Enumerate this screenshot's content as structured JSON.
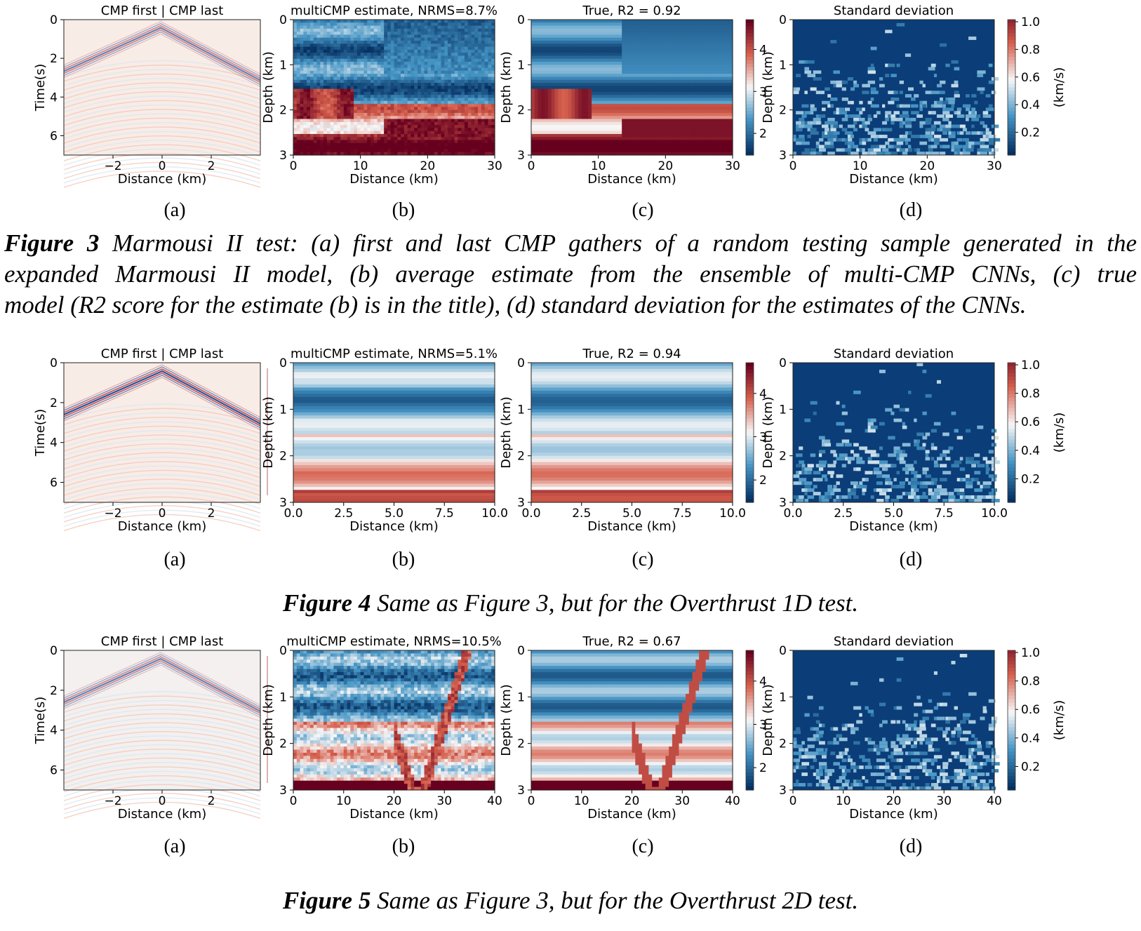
{
  "figures": [
    {
      "id": "fig3",
      "panels": {
        "a": {
          "title": "CMP first | CMP last",
          "xlabel": "Distance (km)",
          "ylabel": "Time(s)",
          "xticks": [
            "−2",
            "0",
            "2"
          ],
          "yticks": [
            "0",
            "2",
            "4",
            "6"
          ]
        },
        "b": {
          "title": "multiCMP estimate, NRMS=8.7%",
          "xlabel": "Distance (km)",
          "ylabel": "Depth (km)",
          "xticks": [
            "0",
            "10",
            "20",
            "30"
          ],
          "yticks": [
            "0",
            "1",
            "2",
            "3"
          ]
        },
        "c": {
          "title": "True, R2 = 0.92",
          "xlabel": "Distance (km)",
          "ylabel": "Depth (km)",
          "xticks": [
            "0",
            "10",
            "20",
            "30"
          ],
          "yticks": [
            "0",
            "1",
            "2",
            "3"
          ],
          "cbar_ticks": [
            "4",
            "3",
            "2"
          ]
        },
        "d": {
          "title": "Standard deviation",
          "xlabel": "Distance (km)",
          "ylabel": "Depth (km)",
          "xticks": [
            "0",
            "10",
            "20",
            "30"
          ],
          "yticks": [
            "0",
            "1",
            "2",
            "3"
          ],
          "cbar_ticks": [
            "1.0",
            "0.8",
            "0.6",
            "0.4",
            "0.2"
          ],
          "cbar_label": "(km/s)"
        }
      },
      "labels": [
        "(a)",
        "(b)",
        "(c)",
        "(d)"
      ]
    },
    {
      "id": "fig4",
      "panels": {
        "a": {
          "title": "CMP first | CMP last",
          "xlabel": "Distance (km)",
          "ylabel": "Time(s)",
          "xticks": [
            "−2",
            "0",
            "2"
          ],
          "yticks": [
            "0",
            "2",
            "4",
            "6"
          ]
        },
        "b": {
          "title": "multiCMP estimate, NRMS=5.1%",
          "xlabel": "Distance (km)",
          "ylabel": "Depth (km)",
          "xticks": [
            "0.0",
            "2.5",
            "5.0",
            "7.5",
            "10.0"
          ],
          "yticks": [
            "0",
            "1",
            "2",
            "3"
          ]
        },
        "c": {
          "title": "True, R2 = 0.94",
          "xlabel": "Distance (km)",
          "ylabel": "Depth (km)",
          "xticks": [
            "0.0",
            "2.5",
            "5.0",
            "7.5",
            "10.0"
          ],
          "yticks": [
            "0",
            "1",
            "2",
            "3"
          ],
          "cbar_ticks": [
            "4",
            "3",
            "2"
          ]
        },
        "d": {
          "title": "Standard deviation",
          "xlabel": "Distance (km)",
          "ylabel": "Depth (km)",
          "xticks": [
            "0.0",
            "2.5",
            "5.0",
            "7.5",
            "10.0"
          ],
          "yticks": [
            "0",
            "1",
            "2",
            "3"
          ],
          "cbar_ticks": [
            "1.0",
            "0.8",
            "0.6",
            "0.4",
            "0.2"
          ],
          "cbar_label": "(km/s)"
        }
      },
      "labels": [
        "(a)",
        "(b)",
        "(c)",
        "(d)"
      ]
    },
    {
      "id": "fig5",
      "panels": {
        "a": {
          "title": "CMP first | CMP last",
          "xlabel": "Distance (km)",
          "ylabel": "Time(s)",
          "xticks": [
            "−2",
            "0",
            "2"
          ],
          "yticks": [
            "0",
            "2",
            "4",
            "6"
          ]
        },
        "b": {
          "title": "multiCMP estimate, NRMS=10.5%",
          "xlabel": "Distance (km)",
          "ylabel": "Depth (km)",
          "xticks": [
            "0",
            "10",
            "20",
            "30",
            "40"
          ],
          "yticks": [
            "0",
            "1",
            "2",
            "3"
          ]
        },
        "c": {
          "title": "True, R2 = 0.67",
          "xlabel": "Distance (km)",
          "ylabel": "Depth (km)",
          "xticks": [
            "0",
            "10",
            "20",
            "30",
            "40"
          ],
          "yticks": [
            "0",
            "1",
            "2",
            "3"
          ],
          "cbar_ticks": [
            "4",
            "3",
            "2"
          ]
        },
        "d": {
          "title": "Standard deviation",
          "xlabel": "Distance (km)",
          "ylabel": "Depth (km)",
          "xticks": [
            "0",
            "10",
            "20",
            "30",
            "40"
          ],
          "yticks": [
            "0",
            "1",
            "2",
            "3"
          ],
          "cbar_ticks": [
            "1.0",
            "0.8",
            "0.6",
            "0.4",
            "0.2"
          ],
          "cbar_label": "(km/s)"
        }
      },
      "labels": [
        "(a)",
        "(b)",
        "(c)",
        "(d)"
      ]
    }
  ],
  "captions": {
    "fig3": {
      "label": "Figure 3",
      "line1": " Marmousi II test: (a) first and last CMP gathers of a random testing sample generated in the",
      "line2": "expanded Marmousi II model, (b) average estimate from the ensemble of multi-CMP CNNs, (c) true",
      "line3": "model (R2 score for the estimate (b) is in the title), (d) standard deviation for the estimates of the CNNs."
    },
    "fig4": {
      "label": "Figure 4",
      "text": " Same as Figure 3, but for the Overthrust 1D test."
    },
    "fig5": {
      "label": "Figure 5",
      "text": " Same as Figure 3, but for the Overthrust 2D test."
    }
  },
  "colors": {
    "rdbu_dark_red": "#67001f",
    "rdbu_red": "#d6604d",
    "rdbu_white": "#f7f7f7",
    "rdbu_blue": "#4393c3",
    "rdbu_dark_blue": "#053061",
    "std_base": "#0b3d78"
  }
}
